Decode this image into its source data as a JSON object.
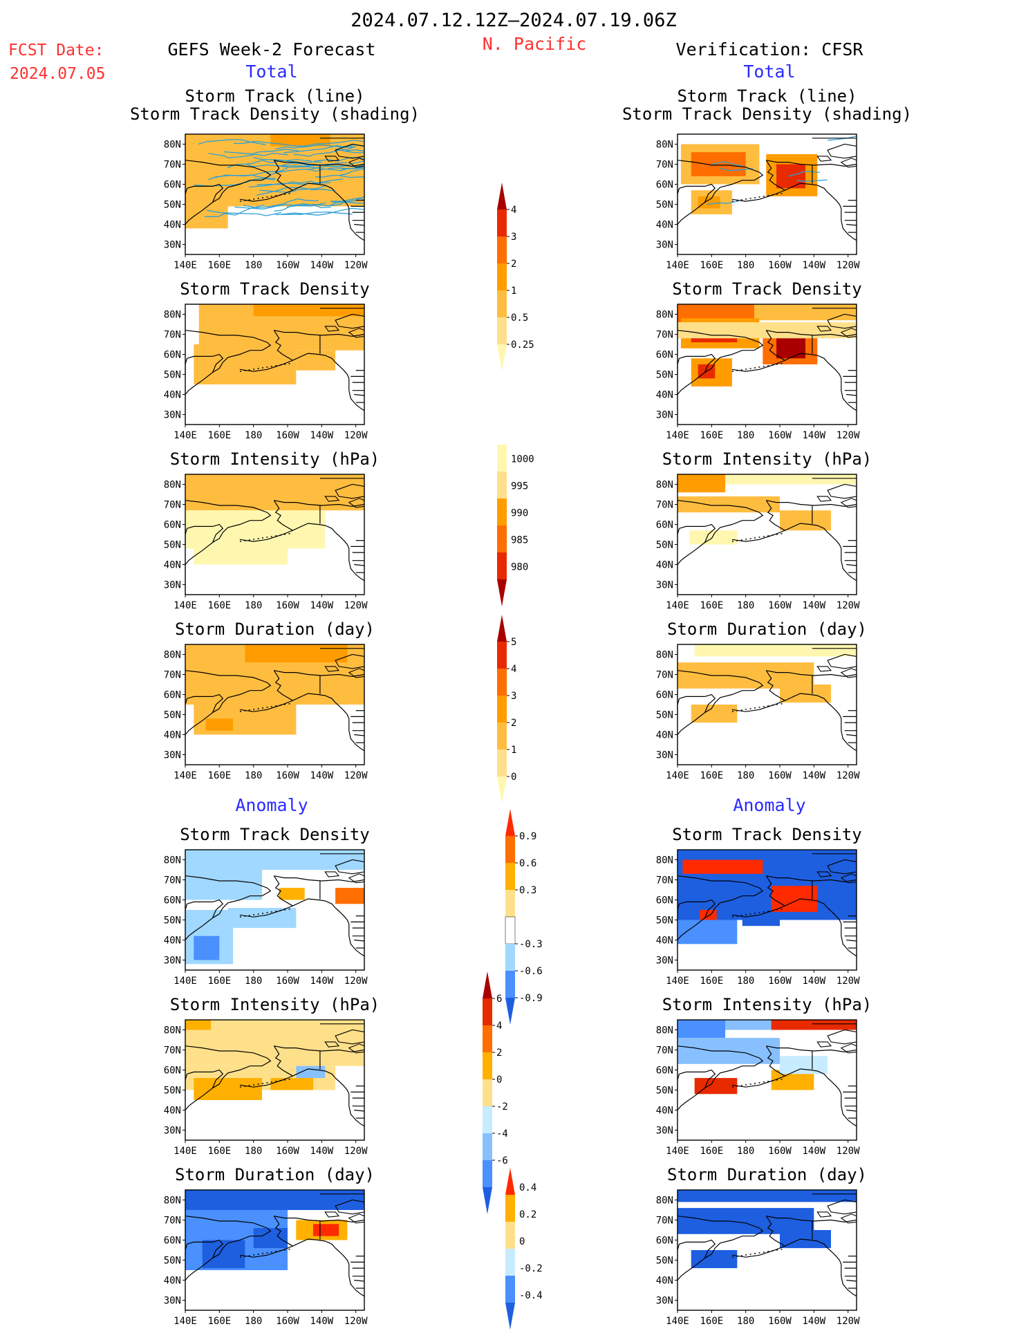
{
  "header": {
    "date_range": "2024.07.12.12Z–2024.07.19.06Z",
    "region": "N. Pacific",
    "fcst_label": "FCST Date:",
    "fcst_date": "2024.07.05",
    "left_title": "GEFS Week-2 Forecast",
    "right_title": "Verification: CFSR",
    "total_label": "Total",
    "anomaly_label": "Anomaly"
  },
  "colors": {
    "title": "#000000",
    "red_text": "#ff3030",
    "blue_text": "#2a2aff",
    "ocean": "#ffffff",
    "track_line": "#2a9fd6"
  },
  "map_axes": {
    "lon_ticks": [
      "140E",
      "160E",
      "180",
      "160W",
      "140W",
      "120W"
    ],
    "lat_ticks": [
      "80N",
      "70N",
      "60N",
      "50N",
      "40N",
      "30N"
    ],
    "lon_range": [
      140,
      245
    ],
    "lat_range": [
      25,
      85
    ]
  },
  "panel_titles": {
    "track": [
      "Storm Track (line)",
      "Storm Track Density (shading)"
    ],
    "density": "Storm Track Density",
    "intensity": "Storm Intensity (hPa)",
    "duration": "Storm Duration (day)"
  },
  "colorbars": {
    "density_total": {
      "labels": [
        "0.25",
        "0.5",
        "1",
        "2",
        "3",
        "4"
      ],
      "colors": [
        "#fff7b0",
        "#ffe08a",
        "#ffbd40",
        "#ff9d00",
        "#ff6e00",
        "#e82a00",
        "#a80000"
      ],
      "range": [
        "0.25",
        "4"
      ]
    },
    "intensity_total": {
      "labels": [
        "1000",
        "995",
        "990",
        "985",
        "980"
      ],
      "colors": [
        "#fff7b0",
        "#ffe08a",
        "#ff9d00",
        "#ff6e00",
        "#e82a00",
        "#a80000"
      ],
      "range": [
        "1000",
        "980"
      ]
    },
    "duration_total": {
      "labels": [
        "0",
        "1",
        "2",
        "3",
        "4",
        "5"
      ],
      "colors": [
        "#fff7b0",
        "#ffe08a",
        "#ffbd40",
        "#ff9d00",
        "#ff6e00",
        "#e82a00",
        "#a80000"
      ],
      "range": [
        "0",
        "5"
      ]
    },
    "density_anom": {
      "labels": [
        "-0.9",
        "-0.6",
        "-0.3",
        "0.3",
        "0.6",
        "0.9"
      ],
      "colors": [
        "#1e5fe0",
        "#4a90ff",
        "#a0d8ff",
        "#ffffff",
        "#ffe08a",
        "#ffb000",
        "#ff6e00",
        "#ff2a00"
      ],
      "range": [
        "-0.9",
        "0.9"
      ]
    },
    "intensity_anom": {
      "labels": [
        "-6",
        "-4",
        "-2",
        "0",
        "2",
        "4",
        "6"
      ],
      "colors": [
        "#1e5fe0",
        "#4a90ff",
        "#88c0ff",
        "#c8ecff",
        "#ffe08a",
        "#ffb000",
        "#ff6e00",
        "#e82a00",
        "#a80000"
      ],
      "range": [
        "-6",
        "6"
      ]
    },
    "duration_anom": {
      "labels": [
        "-0.4",
        "-0.2",
        "0",
        "0.2",
        "0.4"
      ],
      "colors": [
        "#1e5fe0",
        "#4a90ff",
        "#c8ecff",
        "#ffe08a",
        "#ffb000",
        "#ff2a00"
      ],
      "range": [
        "-0.4",
        "0.4"
      ]
    }
  },
  "chart_data": [
    {
      "type": "heatmap",
      "panel": "gefs-total-track",
      "title": "Storm Track (line) / Storm Track Density (shading)",
      "xlabel": "",
      "ylabel": "",
      "lon_range": [
        140,
        245
      ],
      "lat_range": [
        25,
        85
      ],
      "fills": [
        {
          "lon": [
            140,
            245
          ],
          "lat": [
            49,
            85
          ],
          "v": 2
        },
        {
          "lon": [
            140,
            165
          ],
          "lat": [
            38,
            55
          ],
          "v": 2
        },
        {
          "lon": [
            200,
            225
          ],
          "lat": [
            56,
            80
          ],
          "v": 2
        },
        {
          "lon": [
            190,
            225
          ],
          "lat": [
            79,
            85
          ],
          "v": 3
        }
      ],
      "tracks": true
    },
    {
      "type": "heatmap",
      "panel": "cfsr-total-track",
      "title": "Storm Track (line) / Storm Track Density (shading)",
      "lon_range": [
        140,
        245
      ],
      "lat_range": [
        25,
        85
      ],
      "fills": [
        {
          "lon": [
            142,
            188
          ],
          "lat": [
            60,
            80
          ],
          "v": 2
        },
        {
          "lon": [
            148,
            180
          ],
          "lat": [
            64,
            76
          ],
          "v": 4
        },
        {
          "lon": [
            192,
            222
          ],
          "lat": [
            54,
            75
          ],
          "v": 3
        },
        {
          "lon": [
            198,
            215
          ],
          "lat": [
            58,
            70
          ],
          "v": 5
        },
        {
          "lon": [
            148,
            172
          ],
          "lat": [
            45,
            57
          ],
          "v": 2
        },
        {
          "lon": [
            152,
            165
          ],
          "lat": [
            48,
            54
          ],
          "v": 3
        }
      ],
      "tracks": true
    },
    {
      "type": "heatmap",
      "panel": "gefs-total-density",
      "title": "Storm Track Density",
      "lon_range": [
        140,
        245
      ],
      "lat_range": [
        25,
        85
      ],
      "fills": [
        {
          "lon": [
            148,
            245
          ],
          "lat": [
            62,
            85
          ],
          "v": 2
        },
        {
          "lon": [
            145,
            205
          ],
          "lat": [
            45,
            65
          ],
          "v": 2
        },
        {
          "lon": [
            205,
            228
          ],
          "lat": [
            52,
            62
          ],
          "v": 2
        },
        {
          "lon": [
            180,
            245
          ],
          "lat": [
            79,
            85
          ],
          "v": 3
        }
      ]
    },
    {
      "type": "heatmap",
      "panel": "cfsr-total-density",
      "title": "Storm Track Density",
      "lon_range": [
        140,
        245
      ],
      "lat_range": [
        25,
        85
      ],
      "fills": [
        {
          "lon": [
            140,
            245
          ],
          "lat": [
            77,
            85
          ],
          "v": 2
        },
        {
          "lon": [
            140,
            185
          ],
          "lat": [
            76,
            85
          ],
          "v": 4
        },
        {
          "lon": [
            142,
            188
          ],
          "lat": [
            63,
            78
          ],
          "v": 3
        },
        {
          "lon": [
            148,
            175
          ],
          "lat": [
            66,
            74
          ],
          "v": 5
        },
        {
          "lon": [
            190,
            222
          ],
          "lat": [
            55,
            75
          ],
          "v": 4
        },
        {
          "lon": [
            198,
            215
          ],
          "lat": [
            58,
            70
          ],
          "v": 6
        },
        {
          "lon": [
            148,
            172
          ],
          "lat": [
            44,
            58
          ],
          "v": 3
        },
        {
          "lon": [
            152,
            162
          ],
          "lat": [
            48,
            55
          ],
          "v": 5
        },
        {
          "lon": [
            140,
            245
          ],
          "lat": [
            68,
            76
          ],
          "v": 1
        }
      ]
    },
    {
      "type": "heatmap",
      "panel": "gefs-total-intensity",
      "title": "Storm Intensity (hPa)",
      "lon_range": [
        140,
        245
      ],
      "lat_range": [
        25,
        85
      ],
      "fills": [
        {
          "lon": [
            140,
            245
          ],
          "lat": [
            67,
            85
          ],
          "v": 2
        },
        {
          "lon": [
            140,
            222
          ],
          "lat": [
            48,
            67
          ],
          "v": 0
        },
        {
          "lon": [
            145,
            200
          ],
          "lat": [
            40,
            50
          ],
          "v": 0
        }
      ]
    },
    {
      "type": "heatmap",
      "panel": "cfsr-total-intensity",
      "title": "Storm Intensity (hPa)",
      "lon_range": [
        140,
        245
      ],
      "lat_range": [
        25,
        85
      ],
      "fills": [
        {
          "lon": [
            140,
            245
          ],
          "lat": [
            80,
            85
          ],
          "v": 0
        },
        {
          "lon": [
            140,
            168
          ],
          "lat": [
            76,
            85
          ],
          "v": 3
        },
        {
          "lon": [
            140,
            200
          ],
          "lat": [
            66,
            74
          ],
          "v": 2
        },
        {
          "lon": [
            200,
            230
          ],
          "lat": [
            57,
            67
          ],
          "v": 2
        },
        {
          "lon": [
            147,
            175
          ],
          "lat": [
            50,
            57
          ],
          "v": 0
        }
      ]
    },
    {
      "type": "heatmap",
      "panel": "gefs-total-duration",
      "title": "Storm Duration (day)",
      "lon_range": [
        140,
        245
      ],
      "lat_range": [
        25,
        85
      ],
      "fills": [
        {
          "lon": [
            140,
            245
          ],
          "lat": [
            55,
            85
          ],
          "v": 2
        },
        {
          "lon": [
            145,
            205
          ],
          "lat": [
            40,
            55
          ],
          "v": 2
        },
        {
          "lon": [
            175,
            235
          ],
          "lat": [
            76,
            85
          ],
          "v": 3
        },
        {
          "lon": [
            152,
            168
          ],
          "lat": [
            42,
            48
          ],
          "v": 3
        }
      ]
    },
    {
      "type": "heatmap",
      "panel": "cfsr-total-duration",
      "title": "Storm Duration (day)",
      "lon_range": [
        140,
        245
      ],
      "lat_range": [
        25,
        85
      ],
      "fills": [
        {
          "lon": [
            150,
            245
          ],
          "lat": [
            79,
            85
          ],
          "v": 0
        },
        {
          "lon": [
            140,
            220
          ],
          "lat": [
            63,
            76
          ],
          "v": 2
        },
        {
          "lon": [
            148,
            175
          ],
          "lat": [
            46,
            55
          ],
          "v": 2
        },
        {
          "lon": [
            200,
            230
          ],
          "lat": [
            56,
            65
          ],
          "v": 2
        }
      ]
    },
    {
      "type": "heatmap",
      "panel": "gefs-anom-density",
      "title": "Storm Track Density",
      "lon_range": [
        140,
        245
      ],
      "lat_range": [
        25,
        85
      ],
      "fills": [
        {
          "lon": [
            140,
            245
          ],
          "lat": [
            75,
            85
          ],
          "v": 2
        },
        {
          "lon": [
            140,
            185
          ],
          "lat": [
            60,
            75
          ],
          "v": 2
        },
        {
          "lon": [
            140,
            168
          ],
          "lat": [
            28,
            55
          ],
          "v": 2
        },
        {
          "lon": [
            145,
            160
          ],
          "lat": [
            30,
            42
          ],
          "v": 1
        },
        {
          "lon": [
            165,
            205
          ],
          "lat": [
            46,
            56
          ],
          "v": 2
        },
        {
          "lon": [
            195,
            210
          ],
          "lat": [
            60,
            66
          ],
          "v": 5
        },
        {
          "lon": [
            228,
            245
          ],
          "lat": [
            58,
            66
          ],
          "v": 6
        }
      ]
    },
    {
      "type": "heatmap",
      "panel": "cfsr-anom-density",
      "title": "Storm Track Density",
      "lon_range": [
        140,
        245
      ],
      "lat_range": [
        25,
        85
      ],
      "fills": [
        {
          "lon": [
            140,
            245
          ],
          "lat": [
            50,
            85
          ],
          "v": 0
        },
        {
          "lon": [
            143,
            195
          ],
          "lat": [
            73,
            80
          ],
          "v": 7
        },
        {
          "lon": [
            190,
            245
          ],
          "lat": [
            72,
            82
          ],
          "v": 0
        },
        {
          "lon": [
            150,
            190
          ],
          "lat": [
            60,
            72
          ],
          "v": 0
        },
        {
          "lon": [
            178,
            200
          ],
          "lat": [
            47,
            63
          ],
          "v": 0
        },
        {
          "lon": [
            195,
            222
          ],
          "lat": [
            54,
            67
          ],
          "v": 7
        },
        {
          "lon": [
            153,
            163
          ],
          "lat": [
            48,
            55
          ],
          "v": 7
        },
        {
          "lon": [
            140,
            175
          ],
          "lat": [
            38,
            50
          ],
          "v": 1
        }
      ]
    },
    {
      "type": "heatmap",
      "panel": "gefs-anom-intensity",
      "title": "Storm Intensity (hPa)",
      "lon_range": [
        140,
        245
      ],
      "lat_range": [
        25,
        85
      ],
      "fills": [
        {
          "lon": [
            140,
            245
          ],
          "lat": [
            62,
            85
          ],
          "v": 4
        },
        {
          "lon": [
            140,
            155
          ],
          "lat": [
            80,
            85
          ],
          "v": 5
        },
        {
          "lon": [
            140,
            228
          ],
          "lat": [
            50,
            62
          ],
          "v": 4
        },
        {
          "lon": [
            145,
            185
          ],
          "lat": [
            45,
            56
          ],
          "v": 5
        },
        {
          "lon": [
            190,
            215
          ],
          "lat": [
            50,
            56
          ],
          "v": 5
        },
        {
          "lon": [
            205,
            222
          ],
          "lat": [
            56,
            62
          ],
          "v": 2
        }
      ]
    },
    {
      "type": "heatmap",
      "panel": "cfsr-anom-intensity",
      "title": "Storm Intensity (hPa)",
      "lon_range": [
        140,
        245
      ],
      "lat_range": [
        25,
        85
      ],
      "fills": [
        {
          "lon": [
            140,
            245
          ],
          "lat": [
            80,
            85
          ],
          "v": 2
        },
        {
          "lon": [
            140,
            168
          ],
          "lat": [
            76,
            85
          ],
          "v": 1
        },
        {
          "lon": [
            195,
            245
          ],
          "lat": [
            80,
            85
          ],
          "v": 7
        },
        {
          "lon": [
            140,
            200
          ],
          "lat": [
            63,
            76
          ],
          "v": 2
        },
        {
          "lon": [
            150,
            175
          ],
          "lat": [
            48,
            56
          ],
          "v": 7
        },
        {
          "lon": [
            195,
            220
          ],
          "lat": [
            50,
            60
          ],
          "v": 5
        },
        {
          "lon": [
            200,
            228
          ],
          "lat": [
            58,
            67
          ],
          "v": 3
        }
      ]
    },
    {
      "type": "heatmap",
      "panel": "gefs-anom-duration",
      "title": "Storm Duration (day)",
      "lon_range": [
        140,
        245
      ],
      "lat_range": [
        25,
        85
      ],
      "fills": [
        {
          "lon": [
            140,
            245
          ],
          "lat": [
            75,
            85
          ],
          "v": 0
        },
        {
          "lon": [
            140,
            200
          ],
          "lat": [
            45,
            75
          ],
          "v": 1
        },
        {
          "lon": [
            150,
            175
          ],
          "lat": [
            46,
            60
          ],
          "v": 0
        },
        {
          "lon": [
            180,
            200
          ],
          "lat": [
            56,
            66
          ],
          "v": 0
        },
        {
          "lon": [
            205,
            235
          ],
          "lat": [
            60,
            70
          ],
          "v": 4
        },
        {
          "lon": [
            215,
            230
          ],
          "lat": [
            62,
            68
          ],
          "v": 5
        }
      ]
    },
    {
      "type": "heatmap",
      "panel": "cfsr-anom-duration",
      "title": "Storm Duration (day)",
      "lon_range": [
        140,
        245
      ],
      "lat_range": [
        25,
        85
      ],
      "fills": [
        {
          "lon": [
            140,
            245
          ],
          "lat": [
            79,
            85
          ],
          "v": 0
        },
        {
          "lon": [
            140,
            220
          ],
          "lat": [
            63,
            76
          ],
          "v": 0
        },
        {
          "lon": [
            148,
            175
          ],
          "lat": [
            46,
            55
          ],
          "v": 0
        },
        {
          "lon": [
            200,
            230
          ],
          "lat": [
            56,
            65
          ],
          "v": 0
        }
      ]
    }
  ]
}
